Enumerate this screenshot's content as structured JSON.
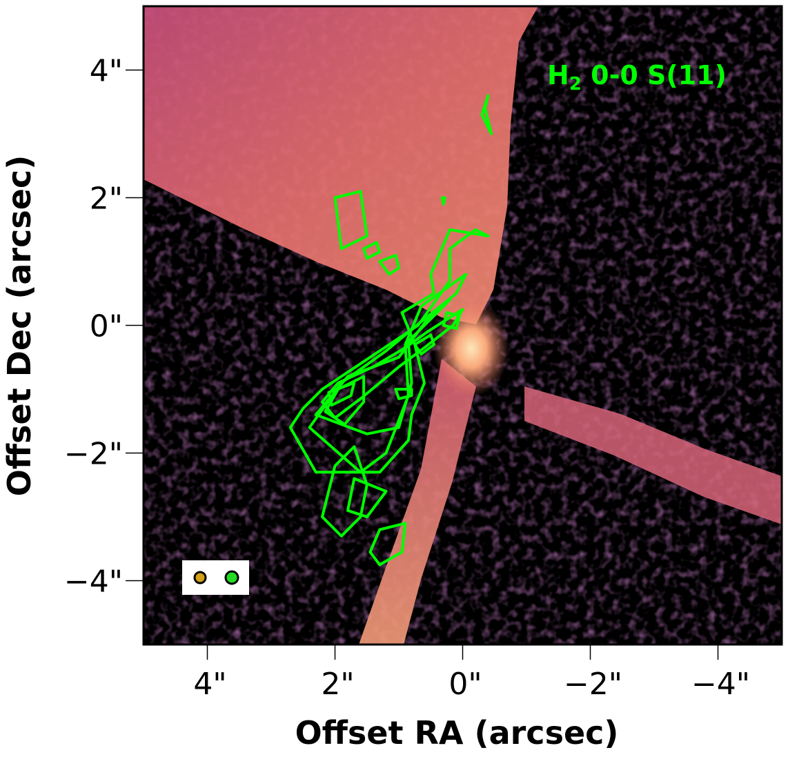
{
  "chart_data": {
    "type": "heatmap",
    "title": "",
    "xlabel": "Offset RA (arcsec)",
    "ylabel": "Offset Dec (arcsec)",
    "xlim": [
      5,
      -5
    ],
    "ylim": [
      -5,
      5
    ],
    "x_ticks": [
      {
        "value": 4,
        "label": "4\""
      },
      {
        "value": 2,
        "label": "2\""
      },
      {
        "value": 0,
        "label": "0\""
      },
      {
        "value": -2,
        "label": "−2\""
      },
      {
        "value": -4,
        "label": "−4\""
      }
    ],
    "y_ticks": [
      {
        "value": 4,
        "label": "4\""
      },
      {
        "value": 2,
        "label": "2\""
      },
      {
        "value": 0,
        "label": "0\""
      },
      {
        "value": -2,
        "label": "−2\""
      },
      {
        "value": -4,
        "label": "−4\""
      }
    ],
    "colormap": "magma",
    "grid": false,
    "annotation": {
      "text_main": "H",
      "text_sub": "2",
      "text_rest": " 0-0 S(11)",
      "color": "#00ff00"
    },
    "contour_color": "#00ff00",
    "beams": [
      {
        "name": "",
        "color": "#d4a017",
        "position": "bottom-left"
      },
      {
        "name": "",
        "color": "#22dd22",
        "position": "bottom-left"
      }
    ],
    "contours": [
      [
        [
          -0.4,
          1.4
        ],
        [
          0.2,
          1.5
        ],
        [
          0.5,
          0.8
        ],
        [
          0.45,
          0.5
        ],
        [
          0.95,
          0.2
        ],
        [
          0.75,
          -0.3
        ],
        [
          0.6,
          -0.9
        ],
        [
          0.8,
          -1.4
        ],
        [
          0.85,
          -1.8
        ],
        [
          1.3,
          -2.3
        ],
        [
          2.3,
          -2.3
        ],
        [
          2.7,
          -1.6
        ],
        [
          2.5,
          -1.3
        ],
        [
          2.2,
          -1.0
        ],
        [
          1.6,
          -0.6
        ],
        [
          0.7,
          0.0
        ],
        [
          0.2,
          0.7
        ],
        [
          0.2,
          1.2
        ],
        [
          -0.2,
          1.5
        ],
        [
          -0.4,
          1.4
        ]
      ],
      [
        [
          -0.05,
          0.8
        ],
        [
          0.65,
          0.3
        ],
        [
          0.9,
          -0.3
        ],
        [
          0.85,
          -1.1
        ],
        [
          1.2,
          -2.0
        ],
        [
          1.6,
          -2.3
        ],
        [
          2.4,
          -1.6
        ],
        [
          1.9,
          -0.9
        ],
        [
          1.2,
          -0.4
        ],
        [
          0.6,
          0.1
        ],
        [
          0.1,
          0.5
        ],
        [
          -0.05,
          0.8
        ]
      ],
      [
        [
          0.2,
          0.4
        ],
        [
          0.85,
          -0.25
        ],
        [
          0.8,
          -0.9
        ],
        [
          1.0,
          -1.6
        ],
        [
          1.5,
          -1.7
        ],
        [
          2.3,
          -1.4
        ],
        [
          1.8,
          -0.8
        ],
        [
          1.0,
          -0.5
        ],
        [
          0.55,
          0.1
        ],
        [
          0.2,
          0.4
        ]
      ],
      [
        [
          0.0,
          0.25
        ],
        [
          0.55,
          -0.1
        ],
        [
          0.9,
          -0.35
        ],
        [
          1.4,
          -0.65
        ],
        [
          1.95,
          -0.9
        ],
        [
          2.2,
          -1.2
        ],
        [
          2.0,
          -1.45
        ],
        [
          1.6,
          -1.15
        ],
        [
          1.0,
          -0.65
        ],
        [
          0.6,
          -0.35
        ],
        [
          0.15,
          0.0
        ],
        [
          0.0,
          0.25
        ]
      ],
      [
        [
          0.05,
          0.15
        ],
        [
          0.25,
          0.2
        ],
        [
          0.3,
          0.0
        ],
        [
          0.1,
          -0.05
        ],
        [
          0.05,
          0.15
        ]
      ],
      [
        [
          1.7,
          -0.9
        ],
        [
          2.1,
          -1.05
        ],
        [
          2.05,
          -1.25
        ],
        [
          1.75,
          -1.1
        ],
        [
          1.7,
          -0.9
        ]
      ],
      [
        [
          0.5,
          -0.15
        ],
        [
          0.75,
          -0.3
        ],
        [
          0.65,
          -0.45
        ],
        [
          0.45,
          -0.3
        ],
        [
          0.5,
          -0.15
        ]
      ],
      [
        [
          1.55,
          -0.8
        ],
        [
          1.95,
          -1.0
        ],
        [
          2.15,
          -1.35
        ],
        [
          1.85,
          -1.55
        ],
        [
          1.55,
          -1.2
        ],
        [
          1.55,
          -0.8
        ]
      ],
      [
        [
          1.7,
          -1.9
        ],
        [
          2.0,
          -2.2
        ],
        [
          2.2,
          -3.0
        ],
        [
          1.9,
          -3.3
        ],
        [
          1.6,
          -3.0
        ],
        [
          1.5,
          -2.5
        ],
        [
          1.7,
          -1.9
        ]
      ],
      [
        [
          0.9,
          -3.1
        ],
        [
          1.3,
          -3.2
        ],
        [
          1.45,
          -3.55
        ],
        [
          1.3,
          -3.75
        ],
        [
          0.95,
          -3.55
        ],
        [
          0.9,
          -3.1
        ]
      ],
      [
        [
          1.2,
          -2.6
        ],
        [
          1.7,
          -2.4
        ],
        [
          1.8,
          -2.9
        ],
        [
          1.5,
          -3.0
        ],
        [
          1.2,
          -2.6
        ]
      ],
      [
        [
          0.8,
          -1.0
        ],
        [
          1.05,
          -1.0
        ],
        [
          1.0,
          -1.15
        ],
        [
          0.8,
          -1.1
        ],
        [
          0.8,
          -1.0
        ]
      ],
      [
        [
          -0.4,
          3.6
        ],
        [
          -0.3,
          3.3
        ],
        [
          -0.45,
          3.0
        ],
        [
          -0.35,
          3.4
        ],
        [
          -0.4,
          3.6
        ]
      ],
      [
        [
          2.0,
          2.0
        ],
        [
          1.6,
          2.1
        ],
        [
          1.5,
          1.4
        ],
        [
          1.9,
          1.2
        ],
        [
          2.0,
          2.0
        ]
      ],
      [
        [
          1.05,
          1.1
        ],
        [
          1.3,
          1.0
        ],
        [
          1.15,
          0.8
        ],
        [
          1.0,
          0.9
        ],
        [
          1.05,
          1.1
        ]
      ],
      [
        [
          1.35,
          1.3
        ],
        [
          1.55,
          1.2
        ],
        [
          1.5,
          1.05
        ],
        [
          1.3,
          1.15
        ],
        [
          1.35,
          1.3
        ]
      ],
      [
        [
          0.3,
          1.9
        ],
        [
          0.32,
          2.0
        ],
        [
          0.28,
          2.0
        ],
        [
          0.3,
          1.9
        ]
      ]
    ]
  }
}
